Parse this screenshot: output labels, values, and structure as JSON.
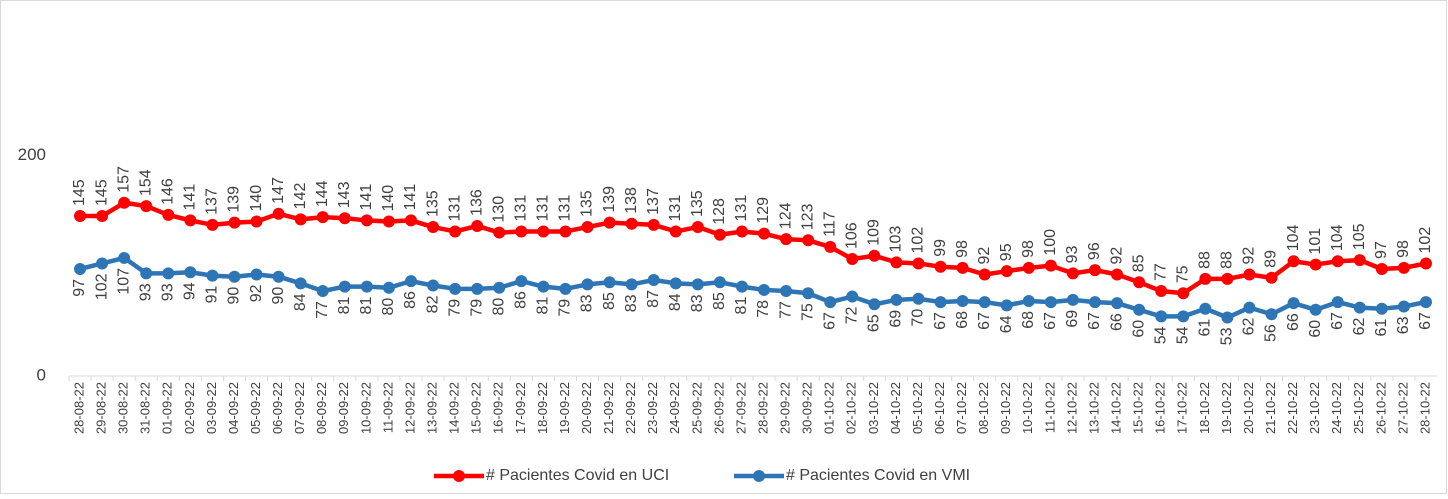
{
  "chart_data": {
    "type": "line",
    "categories": [
      "28-08-22",
      "29-08-22",
      "30-08-22",
      "31-08-22",
      "01-09-22",
      "02-09-22",
      "03-09-22",
      "04-09-22",
      "05-09-22",
      "06-09-22",
      "07-09-22",
      "08-09-22",
      "09-09-22",
      "10-09-22",
      "11-09-22",
      "12-09-22",
      "13-09-22",
      "14-09-22",
      "15-09-22",
      "16-09-22",
      "17-09-22",
      "18-09-22",
      "19-09-22",
      "20-09-22",
      "21-09-22",
      "22-09-22",
      "23-09-22",
      "24-09-22",
      "25-09-22",
      "26-09-22",
      "27-09-22",
      "28-09-22",
      "29-09-22",
      "30-09-22",
      "01-10-22",
      "02-10-22",
      "03-10-22",
      "04-10-22",
      "05-10-22",
      "06-10-22",
      "07-10-22",
      "08-10-22",
      "09-10-22",
      "10-10-22",
      "11-10-22",
      "12-10-22",
      "13-10-22",
      "14-10-22",
      "15-10-22",
      "16-10-22",
      "17-10-22",
      "18-10-22",
      "19-10-22",
      "20-10-22",
      "21-10-22",
      "22-10-22",
      "23-10-22",
      "24-10-22",
      "25-10-22",
      "26-10-22",
      "27-10-22",
      "28-10-22"
    ],
    "series": [
      {
        "name": "# Pacientes Covid en UCI",
        "color": "#ff0000",
        "label_position": "above",
        "values": [
          145,
          145,
          157,
          154,
          146,
          141,
          137,
          139,
          140,
          147,
          142,
          144,
          143,
          141,
          140,
          141,
          135,
          131,
          136,
          130,
          131,
          131,
          131,
          135,
          139,
          138,
          137,
          131,
          135,
          128,
          131,
          129,
          124,
          123,
          117,
          106,
          109,
          103,
          102,
          99,
          98,
          92,
          95,
          98,
          100,
          93,
          96,
          92,
          85,
          77,
          75,
          88,
          88,
          92,
          89,
          104,
          101,
          104,
          105,
          97,
          98,
          102
        ]
      },
      {
        "name": "# Pacientes Covid en VMI",
        "color": "#2e75b6",
        "label_position": "below",
        "values": [
          97,
          102,
          107,
          93,
          93,
          94,
          91,
          90,
          92,
          90,
          84,
          77,
          81,
          81,
          80,
          86,
          82,
          79,
          79,
          80,
          86,
          81,
          79,
          83,
          85,
          83,
          87,
          84,
          83,
          85,
          81,
          78,
          77,
          75,
          67,
          72,
          65,
          69,
          70,
          67,
          68,
          67,
          64,
          68,
          67,
          69,
          67,
          66,
          60,
          54,
          54,
          61,
          53,
          62,
          56,
          66,
          60,
          67,
          62,
          61,
          63,
          67
        ]
      }
    ],
    "ylim": [
      0,
      300
    ],
    "yticks": [
      0,
      200
    ],
    "grid": false,
    "legend": "bottom"
  }
}
